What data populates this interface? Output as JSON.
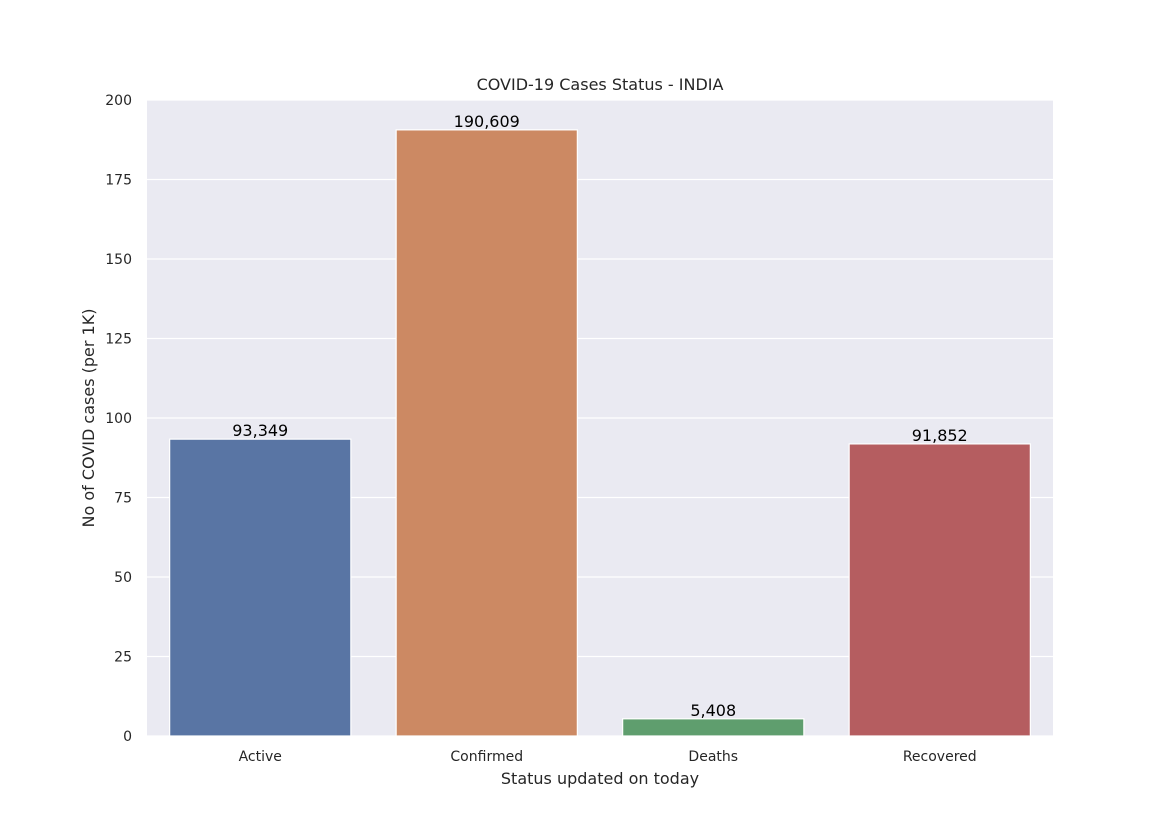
{
  "chart_data": {
    "type": "bar",
    "title": "COVID-19 Cases Status - INDIA",
    "xlabel": "Status updated on today",
    "ylabel": "No of COVID cases (per 1K)",
    "categories": [
      "Active",
      "Confirmed",
      "Deaths",
      "Recovered"
    ],
    "values": [
      93.349,
      190.609,
      5.408,
      91.852
    ],
    "data_labels": [
      "93,349",
      "190,609",
      "5,408",
      "91,852"
    ],
    "ylim": [
      0,
      200
    ],
    "yticks": [
      0,
      25,
      50,
      75,
      100,
      125,
      150,
      175,
      200
    ],
    "colors": [
      "#5975a4",
      "#cc8963",
      "#5f9e6e",
      "#b55d60"
    ],
    "background": "#eaeaf2",
    "grid": true,
    "legend": "none"
  }
}
